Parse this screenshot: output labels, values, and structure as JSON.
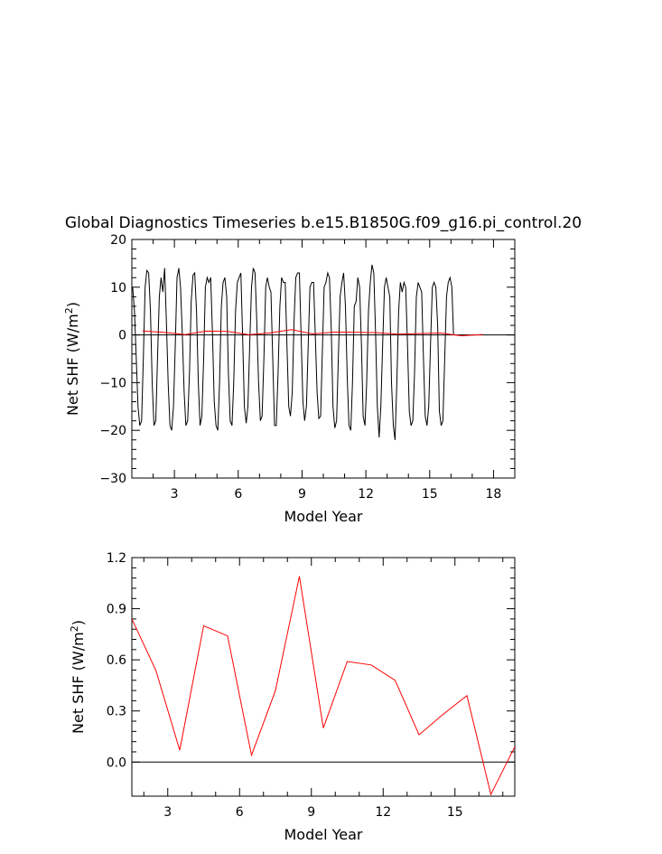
{
  "page": {
    "title": "Global Diagnostics Timeseries b.e15.B1850G.f09_g16.pi_control.20"
  },
  "colors": {
    "monthly_line": "#000000",
    "annual_line": "#ff0000",
    "zero_line": "#000000"
  },
  "chart_data": [
    {
      "type": "line",
      "xlabel": "Model Year",
      "ylabel_parts": [
        "Net SHF (W/m",
        "2",
        ")"
      ],
      "xlim": [
        1,
        19
      ],
      "ylim": [
        -30,
        20
      ],
      "xticks": [
        3,
        6,
        9,
        12,
        15,
        18
      ],
      "xtick_labels": [
        "3",
        "6",
        "9",
        "12",
        "15",
        "18"
      ],
      "yticks": [
        -30,
        -20,
        -10,
        0,
        10,
        20
      ],
      "ytick_labels": [
        "−30",
        "−20",
        "−10",
        "0",
        "10",
        "20"
      ],
      "reference_line": 0,
      "series": [
        {
          "key": "monthly",
          "color": "#000000",
          "x_start": 1.04,
          "x_step": 0.08333,
          "values": [
            10,
            5,
            -5,
            -15,
            -19,
            -18,
            -5,
            10,
            13.5,
            13,
            5,
            -10,
            -19,
            -18,
            -5,
            8,
            12,
            9,
            14,
            3,
            -10,
            -19,
            -20,
            -15,
            -2,
            12,
            14,
            10,
            0,
            -12,
            -19,
            -18,
            -8,
            7,
            12.5,
            13,
            5,
            -10,
            -19,
            -17,
            -5,
            10,
            12,
            11,
            12,
            0,
            -14,
            -19,
            -20,
            -10,
            6,
            11,
            12,
            8,
            -8,
            -18,
            -19,
            -10,
            5,
            11,
            12,
            13,
            0,
            -15,
            -18.5,
            -15,
            -2,
            10,
            14,
            13,
            3,
            -10,
            -18,
            -17,
            -5,
            10,
            12,
            10,
            9,
            -5,
            -19,
            -19,
            -8,
            6,
            12,
            11,
            11,
            -2,
            -15,
            -17,
            -12,
            3,
            12,
            13,
            13,
            0,
            -14,
            -18,
            -15,
            -2,
            10,
            11,
            11,
            0,
            -12,
            -17.5,
            -17,
            -3,
            10,
            11,
            13,
            12,
            1,
            -15,
            -19.5,
            -18,
            -5,
            8,
            11,
            13,
            6,
            -9,
            -19,
            -20,
            -10,
            6,
            7,
            12,
            10,
            -2,
            -17,
            -19,
            -10,
            5,
            11,
            14.7,
            13,
            0,
            -15,
            -21.5,
            -15,
            -2,
            10,
            12,
            10,
            8,
            -10,
            -19,
            -22,
            -10,
            5,
            11,
            9,
            11,
            10,
            -2,
            -16,
            -19,
            -18,
            -8,
            8,
            11,
            10,
            9,
            -5,
            -17,
            -19,
            -15,
            -2,
            10,
            11,
            10,
            2,
            -16,
            -19,
            -18,
            -5,
            8,
            11,
            12,
            10,
            0
          ]
        },
        {
          "key": "annual",
          "color": "#ff0000",
          "x": [
            1.5,
            2.5,
            3.5,
            4.5,
            5.5,
            6.5,
            7.5,
            8.5,
            9.5,
            10.5,
            11.5,
            12.5,
            13.5,
            14.5,
            15.5,
            16.5,
            17.5
          ],
          "values": [
            0.84,
            0.54,
            0.07,
            0.8,
            0.74,
            0.04,
            0.42,
            1.09,
            0.2,
            0.59,
            0.57,
            0.48,
            0.16,
            0.28,
            0.39,
            -0.19,
            0.09
          ]
        }
      ]
    },
    {
      "type": "line",
      "xlabel": "Model Year",
      "ylabel_parts": [
        "Net SHF (W/m",
        "2",
        ")"
      ],
      "xlim": [
        1.5,
        17.5
      ],
      "ylim": [
        -0.2,
        1.2
      ],
      "xticks": [
        3,
        6,
        9,
        12,
        15
      ],
      "xtick_labels": [
        "3",
        "6",
        "9",
        "12",
        "15"
      ],
      "yticks": [
        0,
        0.3,
        0.6,
        0.9,
        1.2
      ],
      "ytick_labels": [
        "0.0",
        "0.3",
        "0.6",
        "0.9",
        "1.2"
      ],
      "reference_line": 0,
      "series": [
        {
          "key": "annual",
          "color": "#ff0000",
          "x": [
            1.5,
            2.5,
            3.5,
            4.5,
            5.5,
            6.5,
            7.5,
            8.5,
            9.5,
            10.5,
            11.5,
            12.5,
            13.5,
            14.5,
            15.5,
            16.5,
            17.5
          ],
          "values": [
            0.84,
            0.54,
            0.07,
            0.8,
            0.74,
            0.04,
            0.42,
            1.09,
            0.2,
            0.59,
            0.57,
            0.48,
            0.16,
            0.28,
            0.39,
            -0.19,
            0.09
          ]
        }
      ]
    }
  ]
}
